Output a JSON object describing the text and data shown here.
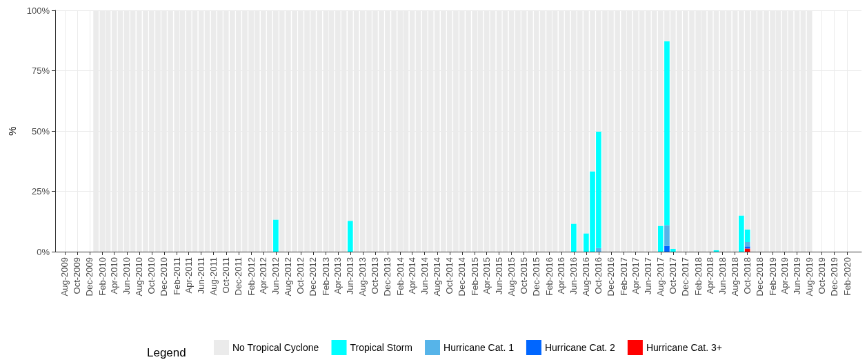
{
  "chart_data": {
    "type": "bar",
    "stacked": true,
    "ylabel": "%",
    "legend_title": "Legend",
    "legend": "bottom",
    "grid": true,
    "x": [
      "2010-01",
      "2010-02",
      "2010-03",
      "2010-04",
      "2010-05",
      "2010-06",
      "2010-07",
      "2010-08",
      "2010-09",
      "2010-10",
      "2010-11",
      "2010-12",
      "2011-01",
      "2011-02",
      "2011-03",
      "2011-04",
      "2011-05",
      "2011-06",
      "2011-07",
      "2011-08",
      "2011-09",
      "2011-10",
      "2011-11",
      "2011-12",
      "2012-01",
      "2012-02",
      "2012-03",
      "2012-04",
      "2012-05",
      "2012-06",
      "2012-07",
      "2012-08",
      "2012-09",
      "2012-10",
      "2012-11",
      "2012-12",
      "2013-01",
      "2013-02",
      "2013-03",
      "2013-04",
      "2013-05",
      "2013-06",
      "2013-07",
      "2013-08",
      "2013-09",
      "2013-10",
      "2013-11",
      "2013-12",
      "2014-01",
      "2014-02",
      "2014-03",
      "2014-04",
      "2014-05",
      "2014-06",
      "2014-07",
      "2014-08",
      "2014-09",
      "2014-10",
      "2014-11",
      "2014-12",
      "2015-01",
      "2015-02",
      "2015-03",
      "2015-04",
      "2015-05",
      "2015-06",
      "2015-07",
      "2015-08",
      "2015-09",
      "2015-10",
      "2015-11",
      "2015-12",
      "2016-01",
      "2016-02",
      "2016-03",
      "2016-04",
      "2016-05",
      "2016-06",
      "2016-07",
      "2016-08",
      "2016-09",
      "2016-10",
      "2016-11",
      "2016-12",
      "2017-01",
      "2017-02",
      "2017-03",
      "2017-04",
      "2017-05",
      "2017-06",
      "2017-07",
      "2017-08",
      "2017-09",
      "2017-10",
      "2017-11",
      "2017-12",
      "2018-01",
      "2018-02",
      "2018-03",
      "2018-04",
      "2018-05",
      "2018-06",
      "2018-07",
      "2018-08",
      "2018-09",
      "2018-10",
      "2018-11",
      "2018-12",
      "2019-01",
      "2019-02",
      "2019-03",
      "2019-04",
      "2019-05",
      "2019-06",
      "2019-07",
      "2019-08"
    ],
    "xlim": [
      "2009-06-15",
      "2020-04-12"
    ],
    "xticks": [
      {
        "value": "2009-08",
        "label": "Aug-2009"
      },
      {
        "value": "2009-10",
        "label": "Oct-2009"
      },
      {
        "value": "2009-12",
        "label": "Dec-2009"
      },
      {
        "value": "2010-02",
        "label": "Feb-2010"
      },
      {
        "value": "2010-04",
        "label": "Apr-2010"
      },
      {
        "value": "2010-06",
        "label": "Jun-2010"
      },
      {
        "value": "2010-08",
        "label": "Aug-2010"
      },
      {
        "value": "2010-10",
        "label": "Oct-2010"
      },
      {
        "value": "2010-12",
        "label": "Dec-2010"
      },
      {
        "value": "2011-02",
        "label": "Feb-2011"
      },
      {
        "value": "2011-04",
        "label": "Apr-2011"
      },
      {
        "value": "2011-06",
        "label": "Jun-2011"
      },
      {
        "value": "2011-08",
        "label": "Aug-2011"
      },
      {
        "value": "2011-10",
        "label": "Oct-2011"
      },
      {
        "value": "2011-12",
        "label": "Dec-2011"
      },
      {
        "value": "2012-02",
        "label": "Feb-2012"
      },
      {
        "value": "2012-04",
        "label": "Apr-2012"
      },
      {
        "value": "2012-06",
        "label": "Jun-2012"
      },
      {
        "value": "2012-08",
        "label": "Aug-2012"
      },
      {
        "value": "2012-10",
        "label": "Oct-2012"
      },
      {
        "value": "2012-12",
        "label": "Dec-2012"
      },
      {
        "value": "2013-02",
        "label": "Feb-2013"
      },
      {
        "value": "2013-04",
        "label": "Apr-2013"
      },
      {
        "value": "2013-06",
        "label": "Jun-2013"
      },
      {
        "value": "2013-08",
        "label": "Aug-2013"
      },
      {
        "value": "2013-10",
        "label": "Oct-2013"
      },
      {
        "value": "2013-12",
        "label": "Dec-2013"
      },
      {
        "value": "2014-02",
        "label": "Feb-2014"
      },
      {
        "value": "2014-04",
        "label": "Apr-2014"
      },
      {
        "value": "2014-06",
        "label": "Jun-2014"
      },
      {
        "value": "2014-08",
        "label": "Aug-2014"
      },
      {
        "value": "2014-10",
        "label": "Oct-2014"
      },
      {
        "value": "2014-12",
        "label": "Dec-2014"
      },
      {
        "value": "2015-02",
        "label": "Feb-2015"
      },
      {
        "value": "2015-04",
        "label": "Apr-2015"
      },
      {
        "value": "2015-06",
        "label": "Jun-2015"
      },
      {
        "value": "2015-08",
        "label": "Aug-2015"
      },
      {
        "value": "2015-10",
        "label": "Oct-2015"
      },
      {
        "value": "2015-12",
        "label": "Dec-2015"
      },
      {
        "value": "2016-02",
        "label": "Feb-2016"
      },
      {
        "value": "2016-04",
        "label": "Apr-2016"
      },
      {
        "value": "2016-06",
        "label": "Jun-2016"
      },
      {
        "value": "2016-08",
        "label": "Aug-2016"
      },
      {
        "value": "2016-10",
        "label": "Oct-2016"
      },
      {
        "value": "2016-12",
        "label": "Dec-2016"
      },
      {
        "value": "2017-02",
        "label": "Feb-2017"
      },
      {
        "value": "2017-04",
        "label": "Apr-2017"
      },
      {
        "value": "2017-06",
        "label": "Jun-2017"
      },
      {
        "value": "2017-08",
        "label": "Aug-2017"
      },
      {
        "value": "2017-10",
        "label": "Oct-2017"
      },
      {
        "value": "2017-12",
        "label": "Dec-2017"
      },
      {
        "value": "2018-02",
        "label": "Feb-2018"
      },
      {
        "value": "2018-04",
        "label": "Apr-2018"
      },
      {
        "value": "2018-06",
        "label": "Jun-2018"
      },
      {
        "value": "2018-08",
        "label": "Aug-2018"
      },
      {
        "value": "2018-10",
        "label": "Oct-2018"
      },
      {
        "value": "2018-12",
        "label": "Dec-2018"
      },
      {
        "value": "2019-02",
        "label": "Feb-2019"
      },
      {
        "value": "2019-04",
        "label": "Apr-2019"
      },
      {
        "value": "2019-06",
        "label": "Jun-2019"
      },
      {
        "value": "2019-08",
        "label": "Aug-2019"
      },
      {
        "value": "2019-10",
        "label": "Oct-2019"
      },
      {
        "value": "2019-12",
        "label": "Dec-2019"
      },
      {
        "value": "2020-02",
        "label": "Feb-2020"
      }
    ],
    "ylim": [
      0,
      100
    ],
    "yticks": [
      {
        "value": 0,
        "label": "0%"
      },
      {
        "value": 25,
        "label": "25%"
      },
      {
        "value": 50,
        "label": "50%"
      },
      {
        "value": 75,
        "label": "75%"
      },
      {
        "value": 100,
        "label": "100%"
      }
    ],
    "series": [
      {
        "name": "Hurricane Cat. 3+",
        "color": "#ff0000",
        "values": [
          0,
          0,
          0,
          0,
          0,
          0,
          0,
          0,
          0,
          0,
          0,
          0,
          0,
          0,
          0,
          0,
          0,
          0,
          0,
          0,
          0,
          0,
          0,
          0,
          0,
          0,
          0,
          0,
          0,
          0,
          0,
          0,
          0,
          0,
          0,
          0,
          0,
          0,
          0,
          0,
          0,
          0,
          0,
          0,
          0,
          0,
          0,
          0,
          0,
          0,
          0,
          0,
          0,
          0,
          0,
          0,
          0,
          0,
          0,
          0,
          0,
          0,
          0,
          0,
          0,
          0,
          0,
          0,
          0,
          0,
          0,
          0,
          0,
          0,
          0,
          0,
          0,
          0,
          0,
          0,
          0,
          0,
          0,
          0,
          0,
          0,
          0,
          0,
          0,
          0,
          0,
          0,
          0,
          0,
          0,
          0,
          0,
          0,
          0,
          0,
          0,
          0,
          0,
          0,
          0,
          1.3,
          0,
          0,
          0,
          0,
          0,
          0,
          0,
          0,
          0,
          0
        ]
      },
      {
        "name": "Hurricane Cat. 2",
        "color": "#0066ff",
        "values": [
          0,
          0,
          0,
          0,
          0,
          0,
          0,
          0,
          0,
          0,
          0,
          0,
          0,
          0,
          0,
          0,
          0,
          0,
          0,
          0,
          0,
          0,
          0,
          0,
          0,
          0,
          0,
          0,
          0,
          0,
          0,
          0,
          0,
          0,
          0,
          0,
          0,
          0,
          0,
          0,
          0,
          0,
          0,
          0,
          0,
          0,
          0,
          0,
          0,
          0,
          0,
          0,
          0,
          0,
          0,
          0,
          0,
          0,
          0,
          0,
          0,
          0,
          0,
          0,
          0,
          0,
          0,
          0,
          0,
          0,
          0,
          0,
          0,
          0,
          0,
          0,
          0,
          0,
          0,
          0,
          0,
          0,
          0,
          0,
          0,
          0,
          0,
          0,
          0,
          0,
          0,
          0,
          2.4,
          0,
          0,
          0,
          0,
          0,
          0,
          0,
          0,
          0,
          0,
          0,
          0,
          0.9,
          0,
          0,
          0,
          0,
          0,
          0,
          0,
          0,
          0,
          0
        ]
      },
      {
        "name": "Hurricane Cat. 1",
        "color": "#56b4e9",
        "values": [
          0,
          0,
          0,
          0,
          0,
          0,
          0,
          0,
          0,
          0,
          0,
          0,
          0,
          0,
          0,
          0,
          0,
          0,
          0,
          0,
          0,
          0,
          0,
          0,
          0,
          0,
          0,
          0,
          0,
          0,
          0,
          0,
          0,
          0,
          0,
          0,
          0,
          0,
          0,
          0,
          0,
          0,
          0,
          0,
          0,
          0,
          0,
          0,
          0,
          0,
          0,
          0,
          0,
          0,
          0,
          0,
          0,
          0,
          0,
          0,
          0,
          0,
          0,
          0,
          0,
          0,
          0,
          0,
          0,
          0,
          0,
          0,
          0,
          0,
          0,
          0,
          0,
          0,
          0,
          0,
          0,
          1.5,
          0,
          0,
          0,
          0,
          0,
          0,
          0,
          0,
          0,
          0,
          8.6,
          0,
          0,
          0,
          0,
          0,
          0,
          0,
          0,
          0,
          0,
          0,
          0,
          1.8,
          0,
          0,
          0,
          0,
          0,
          0,
          0,
          0,
          0,
          0
        ]
      },
      {
        "name": "Tropical Storm",
        "color": "#00ffff",
        "values": [
          0,
          0,
          0,
          0,
          0,
          0,
          0,
          0,
          0,
          0,
          0,
          0,
          0,
          0,
          0,
          0,
          0,
          0,
          0,
          0,
          0,
          0,
          0,
          0,
          0,
          0,
          0,
          0,
          0,
          13.3,
          0,
          0,
          0,
          0,
          0,
          0,
          0,
          0,
          0,
          0,
          0,
          12.8,
          0,
          0,
          0,
          0,
          0,
          0,
          0,
          0,
          0,
          0,
          0,
          0,
          0,
          0,
          0,
          0,
          0,
          0,
          0,
          0,
          0,
          0,
          0,
          0,
          0,
          0,
          0,
          0,
          0,
          0,
          0,
          0,
          0,
          0,
          0,
          11.6,
          0,
          7.6,
          33.3,
          48.3,
          0,
          0,
          0,
          0,
          0,
          0,
          0,
          0,
          0,
          10.7,
          76.2,
          1.2,
          0,
          0,
          0,
          0,
          0,
          0,
          0.6,
          0,
          0,
          0,
          15.0,
          5.2,
          0,
          0,
          0,
          0,
          0,
          0,
          0,
          0,
          0,
          0
        ]
      },
      {
        "name": "No Tropical Cyclone",
        "color": "#ebebeb",
        "values": [
          100,
          100,
          100,
          100,
          100,
          100,
          100,
          100,
          100,
          100,
          100,
          100,
          100,
          100,
          100,
          100,
          100,
          100,
          100,
          100,
          100,
          100,
          100,
          100,
          100,
          100,
          100,
          100,
          100,
          86.7,
          100,
          100,
          100,
          100,
          100,
          100,
          100,
          100,
          100,
          100,
          100,
          87.2,
          100,
          100,
          100,
          100,
          100,
          100,
          100,
          100,
          100,
          100,
          100,
          100,
          100,
          100,
          100,
          100,
          100,
          100,
          100,
          100,
          100,
          100,
          100,
          100,
          100,
          100,
          100,
          100,
          100,
          100,
          100,
          100,
          100,
          100,
          100,
          88.4,
          100,
          92.4,
          66.7,
          50.2,
          100,
          100,
          100,
          100,
          100,
          100,
          100,
          100,
          100,
          89.3,
          12.8,
          98.8,
          100,
          100,
          100,
          100,
          100,
          100,
          99.4,
          100,
          100,
          100,
          85.0,
          90.8,
          100,
          100,
          100,
          100,
          100,
          100,
          100,
          100,
          100,
          100
        ]
      }
    ]
  }
}
